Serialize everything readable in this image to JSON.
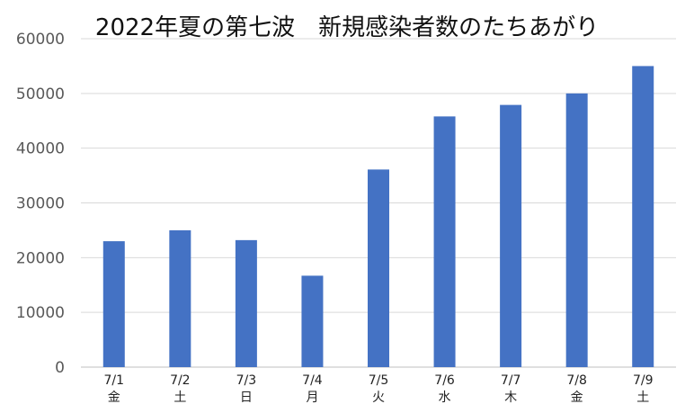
{
  "chart_data": {
    "type": "bar",
    "title": "2022年夏の第七波　新規感染者数のたちあがり",
    "categories": [
      "7/1",
      "7/2",
      "7/3",
      "7/4",
      "7/5",
      "7/6",
      "7/7",
      "7/8",
      "7/9"
    ],
    "weekdays": [
      "金",
      "土",
      "日",
      "月",
      "火",
      "水",
      "木",
      "金",
      "土"
    ],
    "values": [
      23000,
      25000,
      23200,
      16700,
      36100,
      45800,
      47900,
      50000,
      55000
    ],
    "ylim": [
      0,
      60000
    ],
    "yticks": [
      0,
      10000,
      20000,
      30000,
      40000,
      50000,
      60000
    ],
    "grid": true,
    "legend": "none",
    "bar_color": "#4472C4"
  }
}
